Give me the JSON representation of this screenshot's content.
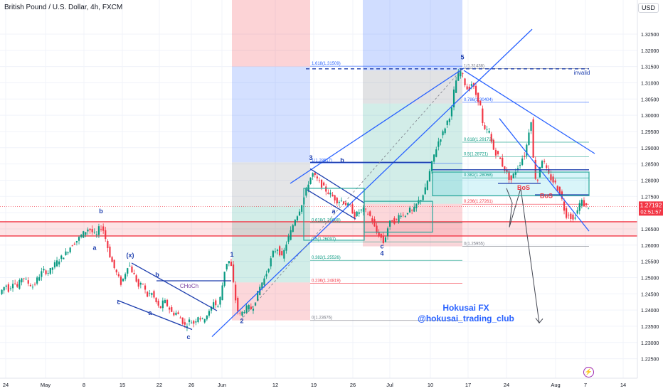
{
  "header": {
    "title": "British Pound / U.S. Dollar, 4h, FXCM",
    "currency": "USD"
  },
  "watermark": {
    "line1": "Hokusai FX",
    "line2": "@hokusai_trading_club"
  },
  "lightning_icon": "⚡",
  "chart_data": {
    "type": "candlestick",
    "symbol": "GBPUSD",
    "timeframe": "4h",
    "ylim": [
      1.219,
      1.3355
    ],
    "y_ticks": [
      "1.22500",
      "1.23000",
      "1.23500",
      "1.24000",
      "1.24500",
      "1.25000",
      "1.25500",
      "1.26000",
      "1.26500",
      "1.27000",
      "1.27500",
      "1.28000",
      "1.28500",
      "1.29000",
      "1.29500",
      "1.30000",
      "1.30500",
      "1.31000",
      "1.31500",
      "1.32000",
      "1.32500"
    ],
    "x_ticks": [
      "24",
      "May",
      "8",
      "15",
      "22",
      "26",
      "Jun",
      "12",
      "19",
      "26",
      "Jul",
      "10",
      "17",
      "24",
      "Aug",
      "7",
      "14"
    ],
    "current_price": "1.27192",
    "countdown": "02:51:57",
    "colors": {
      "up": "#089981",
      "down": "#f23645",
      "accent": "#2962ff"
    },
    "price_path": [
      [
        0,
        1.2445
      ],
      [
        5,
        1.2465
      ],
      [
        10,
        1.2478
      ],
      [
        14,
        1.246
      ],
      [
        20,
        1.249
      ],
      [
        26,
        1.247
      ],
      [
        33,
        1.2505
      ],
      [
        40,
        1.2485
      ],
      [
        48,
        1.2472
      ],
      [
        55,
        1.25
      ],
      [
        62,
        1.2522
      ],
      [
        70,
        1.2515
      ],
      [
        78,
        1.254
      ],
      [
        86,
        1.2558
      ],
      [
        94,
        1.2575
      ],
      [
        102,
        1.26
      ],
      [
        110,
        1.2615
      ],
      [
        118,
        1.2635
      ],
      [
        126,
        1.2652
      ],
      [
        132,
        1.2638
      ],
      [
        137,
        1.2628
      ],
      [
        142,
        1.266
      ],
      [
        147,
        1.2645
      ],
      [
        152,
        1.26
      ],
      [
        157,
        1.256
      ],
      [
        162,
        1.253
      ],
      [
        167,
        1.2505
      ],
      [
        172,
        1.248
      ],
      [
        177,
        1.251
      ],
      [
        182,
        1.2545
      ],
      [
        187,
        1.252
      ],
      [
        192,
        1.2498
      ],
      [
        197,
        1.2468
      ],
      [
        202,
        1.2485
      ],
      [
        208,
        1.2442
      ],
      [
        214,
        1.2455
      ],
      [
        220,
        1.2428
      ],
      [
        226,
        1.2402
      ],
      [
        232,
        1.243
      ],
      [
        238,
        1.241
      ],
      [
        244,
        1.2388
      ],
      [
        250,
        1.2392
      ],
      [
        256,
        1.2372
      ],
      [
        262,
        1.235
      ],
      [
        268,
        1.2368
      ],
      [
        274,
        1.236
      ],
      [
        280,
        1.2382
      ],
      [
        286,
        1.2368
      ],
      [
        292,
        1.2385
      ],
      [
        297,
        1.2395
      ],
      [
        302,
        1.243
      ],
      [
        307,
        1.2405
      ],
      [
        312,
        1.2445
      ],
      [
        317,
        1.252
      ],
      [
        322,
        1.2558
      ],
      [
        327,
        1.253
      ],
      [
        331,
        1.2455
      ],
      [
        335,
        1.24
      ],
      [
        339,
        1.2385
      ],
      [
        344,
        1.2398
      ],
      [
        350,
        1.241
      ],
      [
        356,
        1.2402
      ],
      [
        362,
        1.244
      ],
      [
        368,
        1.2478
      ],
      [
        374,
        1.25
      ],
      [
        380,
        1.254
      ],
      [
        386,
        1.258
      ],
      [
        392,
        1.259
      ],
      [
        398,
        1.256
      ],
      [
        404,
        1.2605
      ],
      [
        410,
        1.264
      ],
      [
        416,
        1.268
      ],
      [
        421,
        1.27
      ],
      [
        426,
        1.273
      ],
      [
        431,
        1.276
      ],
      [
        436,
        1.28
      ],
      [
        441,
        1.282
      ],
      [
        446,
        1.2805
      ],
      [
        452,
        1.279
      ],
      [
        458,
        1.2772
      ],
      [
        464,
        1.276
      ],
      [
        470,
        1.2748
      ],
      [
        476,
        1.2735
      ],
      [
        482,
        1.2738
      ],
      [
        488,
        1.2725
      ],
      [
        494,
        1.2718
      ],
      [
        500,
        1.269
      ],
      [
        506,
        1.2702
      ],
      [
        512,
        1.271
      ],
      [
        518,
        1.27
      ],
      [
        524,
        1.2682
      ],
      [
        530,
        1.264
      ],
      [
        536,
        1.2628
      ],
      [
        541,
        1.2605
      ],
      [
        546,
        1.265
      ],
      [
        552,
        1.268
      ],
      [
        558,
        1.267
      ],
      [
        564,
        1.27
      ],
      [
        570,
        1.2688
      ],
      [
        576,
        1.271
      ],
      [
        582,
        1.2702
      ],
      [
        588,
        1.273
      ],
      [
        594,
        1.2745
      ],
      [
        600,
        1.2775
      ],
      [
        606,
        1.283
      ],
      [
        612,
        1.288
      ],
      [
        618,
        1.292
      ],
      [
        624,
        1.2945
      ],
      [
        630,
        1.298
      ],
      [
        636,
        1.301
      ],
      [
        640,
        1.308
      ],
      [
        644,
        1.312
      ],
      [
        648,
        1.3138
      ],
      [
        652,
        1.312
      ],
      [
        656,
        1.309
      ],
      [
        660,
        1.3075
      ],
      [
        664,
        1.31
      ],
      [
        668,
        1.308
      ],
      [
        672,
        1.3055
      ],
      [
        676,
        1.304
      ],
      [
        680,
        1.297
      ],
      [
        684,
        1.2945
      ],
      [
        688,
        1.296
      ],
      [
        692,
        1.292
      ],
      [
        696,
        1.289
      ],
      [
        700,
        1.288
      ],
      [
        704,
        1.2868
      ],
      [
        708,
        1.2845
      ],
      [
        712,
        1.283
      ],
      [
        716,
        1.281
      ],
      [
        720,
        1.28
      ],
      [
        724,
        1.282
      ],
      [
        728,
        1.2835
      ],
      [
        732,
        1.285
      ],
      [
        736,
        1.287
      ],
      [
        740,
        1.288
      ],
      [
        744,
        1.294
      ],
      [
        748,
        1.299
      ],
      [
        751,
        1.287
      ],
      [
        754,
        1.281
      ],
      [
        758,
        1.28
      ],
      [
        762,
        1.287
      ],
      [
        766,
        1.2855
      ],
      [
        770,
        1.283
      ],
      [
        774,
        1.281
      ],
      [
        778,
        1.2798
      ],
      [
        782,
        1.279
      ],
      [
        786,
        1.277
      ],
      [
        790,
        1.2755
      ],
      [
        794,
        1.2715
      ],
      [
        798,
        1.269
      ],
      [
        802,
        1.27
      ],
      [
        806,
        1.2672
      ],
      [
        810,
        1.2692
      ],
      [
        814,
        1.271
      ],
      [
        818,
        1.274
      ],
      [
        822,
        1.2725
      ],
      [
        826,
        1.2719
      ]
    ],
    "zones": [
      {
        "x1": 326,
        "x2": 436,
        "y1": 1.3355,
        "y2": 1.315,
        "color": "#f23645",
        "opacity": 0.22
      },
      {
        "x1": 326,
        "x2": 436,
        "y1": 1.315,
        "y2": 1.2855,
        "color": "#2962ff",
        "opacity": 0.2
      },
      {
        "x1": 326,
        "x2": 436,
        "y1": 1.2855,
        "y2": 1.272,
        "color": "#787b86",
        "opacity": 0.2
      },
      {
        "x1": 326,
        "x2": 436,
        "y1": 1.272,
        "y2": 1.2485,
        "color": "#089981",
        "opacity": 0.18
      },
      {
        "x1": 326,
        "x2": 436,
        "y1": 1.2485,
        "y2": 1.2368,
        "color": "#f23645",
        "opacity": 0.2
      },
      {
        "x1": 510,
        "x2": 650,
        "y1": 1.3355,
        "y2": 1.3138,
        "color": "#2962ff",
        "opacity": 0.22
      },
      {
        "x1": 510,
        "x2": 650,
        "y1": 1.3138,
        "y2": 1.3036,
        "color": "#787b86",
        "opacity": 0.22
      },
      {
        "x1": 510,
        "x2": 650,
        "y1": 1.3036,
        "y2": 1.2727,
        "color": "#089981",
        "opacity": 0.18
      },
      {
        "x1": 510,
        "x2": 650,
        "y1": 1.2727,
        "y2": 1.2596,
        "color": "#f23645",
        "opacity": 0.2
      },
      {
        "x1": 0,
        "x2": 932,
        "y1": 1.2672,
        "y2": 1.2628,
        "color": "#f23645",
        "opacity": 0.14
      },
      {
        "x1": 608,
        "x2": 828,
        "y1": 1.2825,
        "y2": 1.2752,
        "color": "#00bcd4",
        "opacity": 0.15
      }
    ],
    "fib_levels": [
      {
        "x1": 436,
        "x2": 650,
        "y": 1.3151,
        "label": "1.618(1.31509)",
        "color": "#2962ff"
      },
      {
        "x1": 436,
        "x2": 650,
        "y": 1.2852,
        "label": "1(1.28517)",
        "color": "#2962ff"
      },
      {
        "x1": 436,
        "x2": 650,
        "y": 1.2669,
        "label": "0.618(1.26688)",
        "color": "#089981"
      },
      {
        "x1": 436,
        "x2": 650,
        "y": 1.261,
        "label": "0.5(1.26097)",
        "color": "#089981"
      },
      {
        "x1": 436,
        "x2": 650,
        "y": 1.2553,
        "label": "0.382(1.25526)",
        "color": "#089981"
      },
      {
        "x1": 436,
        "x2": 650,
        "y": 1.2482,
        "label": "0.236(1.24819)",
        "color": "#f23645"
      },
      {
        "x1": 436,
        "x2": 650,
        "y": 1.2368,
        "label": "0(1.23676)",
        "color": "#787b86"
      },
      {
        "x1": 650,
        "x2": 828,
        "y": 1.3144,
        "label": "1(1.31438)",
        "color": "#787b86"
      },
      {
        "x1": 650,
        "x2": 828,
        "y": 1.304,
        "label": "0.786(1.30404)",
        "color": "#2962ff"
      },
      {
        "x1": 650,
        "x2": 828,
        "y": 1.2917,
        "label": "0.618(1.29172)",
        "color": "#089981"
      },
      {
        "x1": 650,
        "x2": 828,
        "y": 1.2872,
        "label": "0.5(1.28721)",
        "color": "#089981"
      },
      {
        "x1": 650,
        "x2": 828,
        "y": 1.2807,
        "label": "0.382(1.28068)",
        "color": "#089981"
      },
      {
        "x1": 650,
        "x2": 828,
        "y": 1.2726,
        "label": "0.236(1.27261)",
        "color": "#f23645"
      },
      {
        "x1": 650,
        "x2": 828,
        "y": 1.2596,
        "label": "0(1.25955)",
        "color": "#787b86"
      }
    ],
    "horizontal_lines": [
      {
        "y": 1.2672,
        "color": "#f23645"
      },
      {
        "y": 1.2628,
        "color": "#f23645"
      }
    ],
    "dashed_lines": [
      {
        "x1": 430,
        "x2": 828,
        "y": 1.3143,
        "label": "invalid",
        "color": "#1e3fae"
      }
    ],
    "trend_lines": [
      {
        "x1": 298,
        "y1": 1.2318,
        "x2": 748,
        "y2": 1.3265,
        "color": "#2962ff"
      },
      {
        "x1": 408,
        "y1": 1.279,
        "x2": 652,
        "y2": 1.3145,
        "color": "#2962ff"
      },
      {
        "x1": 652,
        "y1": 1.3138,
        "x2": 836,
        "y2": 1.2882,
        "color": "#2962ff"
      },
      {
        "x1": 702,
        "y1": 1.299,
        "x2": 828,
        "y2": 1.2643,
        "color": "#2962ff"
      },
      {
        "x1": 185,
        "y1": 1.2545,
        "x2": 305,
        "y2": 1.2398,
        "color": "#1e3fae"
      },
      {
        "x1": 165,
        "y1": 1.243,
        "x2": 270,
        "y2": 1.234,
        "color": "#1e3fae"
      },
      {
        "x1": 436,
        "y1": 1.2835,
        "x2": 512,
        "y2": 1.273,
        "color": "#1e3fae"
      },
      {
        "x1": 432,
        "y1": 1.277,
        "x2": 500,
        "y2": 1.268,
        "color": "#1e3fae"
      },
      {
        "x1": 220,
        "y1": 1.249,
        "x2": 325,
        "y2": 1.249,
        "color": "#1e3fae"
      },
      {
        "x1": 436,
        "y1": 1.2855,
        "x2": 606,
        "y2": 1.2855,
        "color": "#1e3fae"
      },
      {
        "x1": 608,
        "y1": 1.2832,
        "x2": 828,
        "y2": 1.2832,
        "color": "#1e3fae"
      },
      {
        "x1": 700,
        "y1": 1.279,
        "x2": 760,
        "y2": 1.279,
        "color": "#1e3fae"
      },
      {
        "x1": 752,
        "y1": 1.2755,
        "x2": 828,
        "y2": 1.2755,
        "color": "#1e3fae"
      }
    ],
    "dashed_trend": [
      {
        "x1": 338,
        "y1": 1.2368,
        "x2": 650,
        "y2": 1.3144,
        "color": "#787b86"
      }
    ],
    "arrow_path": [
      [
        712,
        1.2775
      ],
      [
        720,
        1.273
      ],
      [
        716,
        1.2655
      ],
      [
        732,
        1.2775
      ],
      [
        758,
        1.236
      ]
    ],
    "boxes": [
      {
        "x1": 427,
        "x2": 512,
        "y1": 1.2775,
        "y2": 1.2615,
        "color": "#26a69a"
      },
      {
        "x1": 512,
        "x2": 608,
        "y1": 1.2735,
        "y2": 1.264,
        "color": "#26a69a"
      },
      {
        "x1": 608,
        "x2": 828,
        "y1": 1.2825,
        "y2": 1.2752,
        "color": "#26a69a"
      }
    ],
    "annotations": [
      {
        "x": 142,
        "y": 1.2698,
        "text": "b",
        "color": "#1e3fae"
      },
      {
        "x": 133,
        "y": 1.2585,
        "text": "a",
        "color": "#1e3fae"
      },
      {
        "x": 183,
        "y": 1.2562,
        "text": "(x)",
        "color": "#1e3fae"
      },
      {
        "x": 221,
        "y": 1.2502,
        "text": "b",
        "color": "#1e3fae"
      },
      {
        "x": 167,
        "y": 1.2418,
        "text": "c",
        "color": "#1e3fae"
      },
      {
        "x": 211,
        "y": 1.2385,
        "text": "a",
        "color": "#1e3fae"
      },
      {
        "x": 265,
        "y": 1.231,
        "text": "c",
        "color": "#1e3fae"
      },
      {
        "x": 266,
        "y": 1.2468,
        "text": "CHoCh",
        "color": "#7b3fa0"
      },
      {
        "x": 326,
        "y": 1.2565,
        "text": "1",
        "color": "#1e3fae"
      },
      {
        "x": 340,
        "y": 1.236,
        "text": "2",
        "color": "#1e3fae"
      },
      {
        "x": 437,
        "y": 1.2862,
        "text": "3",
        "color": "#1e3fae"
      },
      {
        "x": 481,
        "y": 1.2855,
        "text": "b",
        "color": "#1e3fae"
      },
      {
        "x": 469,
        "y": 1.2698,
        "text": "a",
        "color": "#1e3fae"
      },
      {
        "x": 537,
        "y": 1.259,
        "text": "c",
        "color": "#1e3fae"
      },
      {
        "x": 537,
        "y": 1.2568,
        "text": "4",
        "color": "#1e3fae"
      },
      {
        "x": 650,
        "y": 1.3172,
        "text": "5",
        "color": "#1e3fae"
      },
      {
        "x": 818,
        "y": 1.3125,
        "text": "invalid",
        "color": "#1e3fae"
      },
      {
        "x": 736,
        "y": 1.277,
        "text": "BoS",
        "color": "#f23645"
      },
      {
        "x": 768,
        "y": 1.2745,
        "text": "BoS",
        "color": "#f23645"
      }
    ]
  }
}
